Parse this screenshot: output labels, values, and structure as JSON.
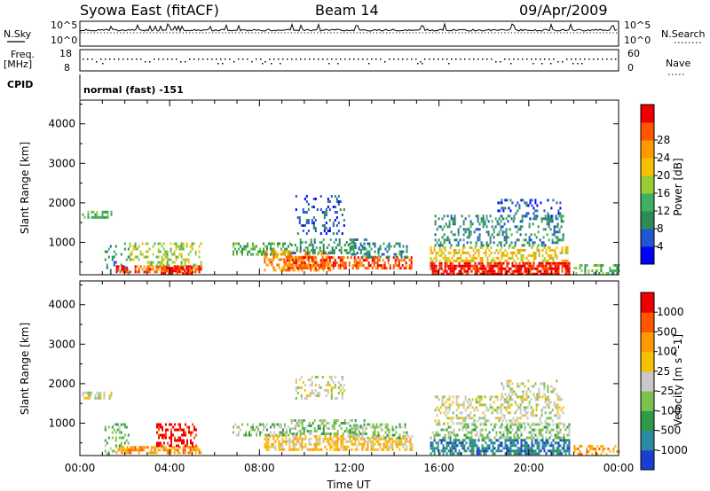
{
  "header": {
    "left": "Syowa East (fitACF)",
    "center": "Beam 14",
    "right": "09/Apr/2009"
  },
  "strips": {
    "nsky_label": "N.Sky",
    "nsky_top": "10^5",
    "nsky_bottom": "10^0",
    "nsearch_label": "N.Search",
    "nsearch_top": "10^5",
    "nsearch_bottom": "10^0",
    "freq_label_1": "Freq.",
    "freq_label_2": "[MHz]",
    "freq_top": "18",
    "freq_bottom": "8",
    "nave_label": "Nave",
    "nave_top": "60",
    "nave_bottom": "0",
    "cpid_label": "CPID",
    "cpid_value": "normal (fast) -151"
  },
  "chart_data": [
    {
      "type": "heatmap",
      "name": "power-panel",
      "xlabel": "Time UT",
      "ylabel": "Slant Range [km]",
      "x_ticks": [
        "00:00",
        "04:00",
        "08:00",
        "12:00",
        "16:00",
        "20:00",
        "00:00"
      ],
      "x_range_hours": [
        0,
        24
      ],
      "y_range_km": [
        180,
        4600
      ],
      "y_ticks": [
        1000,
        2000,
        3000,
        4000
      ],
      "colorbar": {
        "label": "Power [dB]",
        "ticks": [
          "4",
          "8",
          "12",
          "16",
          "20",
          "24",
          "28"
        ],
        "colors": [
          "#0000ff",
          "#2255d0",
          "#2e8b57",
          "#3fb060",
          "#99cc33",
          "#f5c000",
          "#ff9900",
          "#ff5500",
          "#ee0000"
        ]
      },
      "regions": [
        {
          "x": [
            0.1,
            1.4
          ],
          "y": [
            1600,
            1800
          ],
          "level": 3,
          "density": 0.55
        },
        {
          "x": [
            1.1,
            2.2
          ],
          "y": [
            250,
            1000
          ],
          "level": 2,
          "density": 0.25
        },
        {
          "x": [
            1.6,
            2.1
          ],
          "y": [
            220,
            420
          ],
          "level": 8,
          "density": 0.7
        },
        {
          "x": [
            2.2,
            5.4
          ],
          "y": [
            220,
            420
          ],
          "level": 7,
          "density": 0.6
        },
        {
          "x": [
            2.2,
            5.4
          ],
          "y": [
            400,
            1000
          ],
          "level": 4,
          "density": 0.35
        },
        {
          "x": [
            3.6,
            5.0
          ],
          "y": [
            220,
            380
          ],
          "level": 8,
          "density": 0.7
        },
        {
          "x": [
            6.8,
            9.4
          ],
          "y": [
            700,
            1000
          ],
          "level": 3,
          "density": 0.45
        },
        {
          "x": [
            8.2,
            11.2
          ],
          "y": [
            300,
            800
          ],
          "level": 6,
          "density": 0.55
        },
        {
          "x": [
            9.2,
            14.8
          ],
          "y": [
            350,
            650
          ],
          "level": 7,
          "density": 0.6
        },
        {
          "x": [
            9.4,
            12.8
          ],
          "y": [
            700,
            1100
          ],
          "level": 2,
          "density": 0.4
        },
        {
          "x": [
            9.6,
            11.8
          ],
          "y": [
            1200,
            2200
          ],
          "level": 1,
          "density": 0.2
        },
        {
          "x": [
            12.0,
            14.6
          ],
          "y": [
            600,
            1000
          ],
          "level": 2,
          "density": 0.35
        },
        {
          "x": [
            15.6,
            21.8
          ],
          "y": [
            200,
            500
          ],
          "level": 8,
          "density": 0.75
        },
        {
          "x": [
            15.6,
            21.8
          ],
          "y": [
            500,
            900
          ],
          "level": 5,
          "density": 0.45
        },
        {
          "x": [
            15.8,
            21.5
          ],
          "y": [
            900,
            1700
          ],
          "level": 2,
          "density": 0.3
        },
        {
          "x": [
            18.6,
            21.4
          ],
          "y": [
            1600,
            2100
          ],
          "level": 1,
          "density": 0.25
        },
        {
          "x": [
            22.0,
            24.0
          ],
          "y": [
            200,
            450
          ],
          "level": 3,
          "density": 0.35
        }
      ]
    },
    {
      "type": "heatmap",
      "name": "velocity-panel",
      "xlabel": "Time UT",
      "ylabel": "Slant Range [km]",
      "x_ticks": [
        "00:00",
        "04:00",
        "08:00",
        "12:00",
        "16:00",
        "20:00",
        "00:00"
      ],
      "x_range_hours": [
        0,
        24
      ],
      "y_range_km": [
        180,
        4600
      ],
      "y_ticks": [
        1000,
        2000,
        3000,
        4000
      ],
      "colorbar": {
        "label": "Velocity [m s^-1]",
        "ticks": [
          "1000",
          "500",
          "100",
          "25",
          "-25",
          "-100",
          "-500",
          "-1000"
        ],
        "colors": [
          "#1a3fd0",
          "#2a8aa0",
          "#2e9a4a",
          "#7cc24a",
          "#c8c8c8",
          "#f5c000",
          "#ff9900",
          "#ff5500",
          "#ee0000"
        ]
      },
      "regions": [
        {
          "x": [
            0.1,
            1.4
          ],
          "y": [
            1600,
            1800
          ],
          "level": 4,
          "density": 0.55
        },
        {
          "x": [
            1.1,
            2.2
          ],
          "y": [
            250,
            1000
          ],
          "level": 3,
          "density": 0.25
        },
        {
          "x": [
            1.6,
            2.4
          ],
          "y": [
            220,
            420
          ],
          "level": 6,
          "density": 0.6
        },
        {
          "x": [
            2.2,
            5.4
          ],
          "y": [
            220,
            420
          ],
          "level": 6,
          "density": 0.6
        },
        {
          "x": [
            3.4,
            5.2
          ],
          "y": [
            400,
            1000
          ],
          "level": 8,
          "density": 0.45
        },
        {
          "x": [
            6.8,
            9.4
          ],
          "y": [
            700,
            1000
          ],
          "level": 3,
          "density": 0.5
        },
        {
          "x": [
            8.2,
            14.8
          ],
          "y": [
            300,
            700
          ],
          "level": 5,
          "density": 0.6
        },
        {
          "x": [
            9.4,
            12.8
          ],
          "y": [
            700,
            1100
          ],
          "level": 3,
          "density": 0.45
        },
        {
          "x": [
            9.6,
            11.8
          ],
          "y": [
            1600,
            2200
          ],
          "level": 4,
          "density": 0.3
        },
        {
          "x": [
            12.0,
            14.6
          ],
          "y": [
            600,
            1000
          ],
          "level": 3,
          "density": 0.4
        },
        {
          "x": [
            15.6,
            21.8
          ],
          "y": [
            220,
            600
          ],
          "level": 1,
          "density": 0.6
        },
        {
          "x": [
            15.6,
            21.8
          ],
          "y": [
            600,
            1000
          ],
          "level": 3,
          "density": 0.45
        },
        {
          "x": [
            15.8,
            21.5
          ],
          "y": [
            1000,
            1700
          ],
          "level": 4,
          "density": 0.35
        },
        {
          "x": [
            18.6,
            21.4
          ],
          "y": [
            1600,
            2100
          ],
          "level": 4,
          "density": 0.3
        },
        {
          "x": [
            22.0,
            24.0
          ],
          "y": [
            200,
            450
          ],
          "level": 6,
          "density": 0.35
        }
      ]
    }
  ]
}
